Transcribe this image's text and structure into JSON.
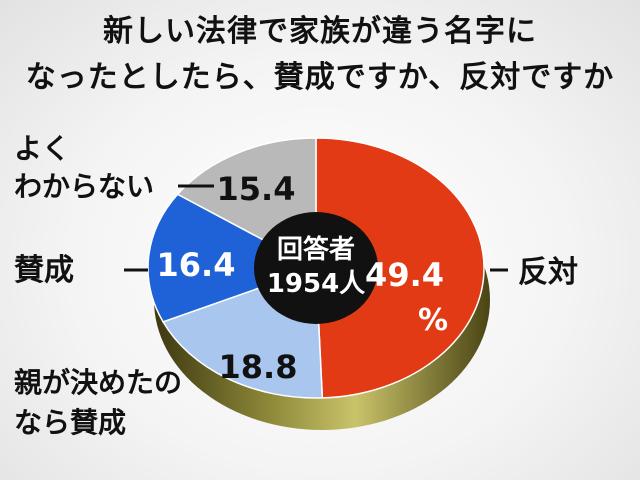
{
  "title_line1": "新しい法律で家族が違う名字に",
  "title_line2": "なったとしたら、賛成ですか、反対ですか",
  "center_label_line1": "回答者",
  "center_label_line2": "1954人",
  "unit": "%",
  "colors": {
    "反対": "#e23a14",
    "親が決めたのなら賛成": "#a9c6ef",
    "賛成": "#1f62d8",
    "よくわからない": "#b9b9b9",
    "base": "#6b6420",
    "center": "#111111"
  },
  "chart_data": {
    "type": "pie",
    "title": "新しい法律で家族が違う名字になったとしたら、賛成ですか、反対ですか",
    "total_respondents": "1954人",
    "unit": "%",
    "slices": [
      {
        "label": "反対",
        "value": 49.4,
        "value_text": "49.4"
      },
      {
        "label_lines": [
          "親が決めたの",
          "なら賛成"
        ],
        "label": "親が決めたのなら賛成",
        "value": 18.8,
        "value_text": "18.8"
      },
      {
        "label": "賛成",
        "value": 16.4,
        "value_text": "16.4"
      },
      {
        "label_lines": [
          "よく",
          "わからない"
        ],
        "label": "よくわからない",
        "value": 15.4,
        "value_text": "15.4"
      }
    ]
  }
}
